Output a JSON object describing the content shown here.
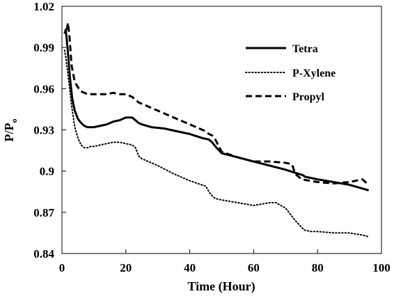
{
  "chart_data": {
    "type": "line",
    "title": "",
    "xlabel": "Time (Hour)",
    "ylabel": "P/P",
    "ylabel_subscript": "o",
    "xlim": [
      0,
      100
    ],
    "ylim": [
      0.84,
      1.02
    ],
    "xticks": [
      "0",
      "20",
      "40",
      "60",
      "80",
      "100"
    ],
    "yticks": [
      "0.84",
      "0.87",
      "0.9",
      "0.93",
      "0.96",
      "0.99",
      "1.02"
    ],
    "grid": false,
    "legend_position": "top-right",
    "series": [
      {
        "name": "Tetra",
        "style": "solid",
        "x": [
          0.8,
          1.2,
          1.8,
          2.5,
          3.2,
          4,
          5,
          6,
          7,
          8,
          10,
          12,
          14,
          16,
          18,
          20,
          21,
          22,
          23,
          24,
          25,
          28,
          32,
          36,
          40,
          44,
          46,
          47,
          48,
          50,
          55,
          60,
          65,
          70,
          74,
          75.5,
          76,
          80,
          85,
          90,
          93,
          96
        ],
        "y": [
          1.0,
          1.003,
          0.988,
          0.968,
          0.953,
          0.944,
          0.938,
          0.935,
          0.933,
          0.932,
          0.932,
          0.933,
          0.934,
          0.936,
          0.937,
          0.939,
          0.939,
          0.939,
          0.937,
          0.935,
          0.934,
          0.932,
          0.931,
          0.929,
          0.927,
          0.924,
          0.923,
          0.921,
          0.918,
          0.913,
          0.91,
          0.907,
          0.904,
          0.901,
          0.898,
          0.897,
          0.896,
          0.894,
          0.892,
          0.89,
          0.888,
          0.886
        ]
      },
      {
        "name": "P-Xylene",
        "style": "dotted",
        "x": [
          0.8,
          1.2,
          2,
          3,
          4,
          5,
          6,
          7,
          8,
          9,
          10,
          12,
          14,
          16,
          18,
          20,
          22,
          23,
          24,
          25,
          30,
          35,
          40,
          45,
          46,
          47,
          48,
          50,
          55,
          60,
          65,
          67,
          70,
          73,
          75,
          76,
          78,
          80,
          85,
          90,
          95,
          96
        ],
        "y": [
          0.988,
          0.983,
          0.968,
          0.948,
          0.932,
          0.924,
          0.919,
          0.917,
          0.917,
          0.918,
          0.918,
          0.919,
          0.92,
          0.921,
          0.921,
          0.92,
          0.919,
          0.917,
          0.911,
          0.909,
          0.904,
          0.898,
          0.893,
          0.889,
          0.885,
          0.882,
          0.88,
          0.879,
          0.877,
          0.875,
          0.877,
          0.877,
          0.873,
          0.864,
          0.859,
          0.857,
          0.856,
          0.856,
          0.855,
          0.855,
          0.853,
          0.852
        ]
      },
      {
        "name": "Propyl",
        "style": "dashed",
        "x": [
          1.5,
          1.9,
          2.4,
          3,
          4,
          5,
          6,
          7,
          8,
          10,
          12,
          14,
          16,
          18,
          20,
          22,
          24,
          25,
          30,
          35,
          40,
          45,
          46,
          47,
          48,
          50,
          55,
          60,
          65,
          70,
          72,
          73,
          75,
          80,
          85,
          90,
          94,
          96
        ],
        "y": [
          1.003,
          1.008,
          0.997,
          0.977,
          0.965,
          0.961,
          0.958,
          0.957,
          0.956,
          0.956,
          0.956,
          0.956,
          0.957,
          0.956,
          0.956,
          0.954,
          0.95,
          0.949,
          0.944,
          0.939,
          0.934,
          0.929,
          0.927,
          0.926,
          0.923,
          0.914,
          0.91,
          0.907,
          0.907,
          0.906,
          0.905,
          0.898,
          0.894,
          0.892,
          0.891,
          0.892,
          0.894,
          0.89
        ]
      }
    ]
  }
}
